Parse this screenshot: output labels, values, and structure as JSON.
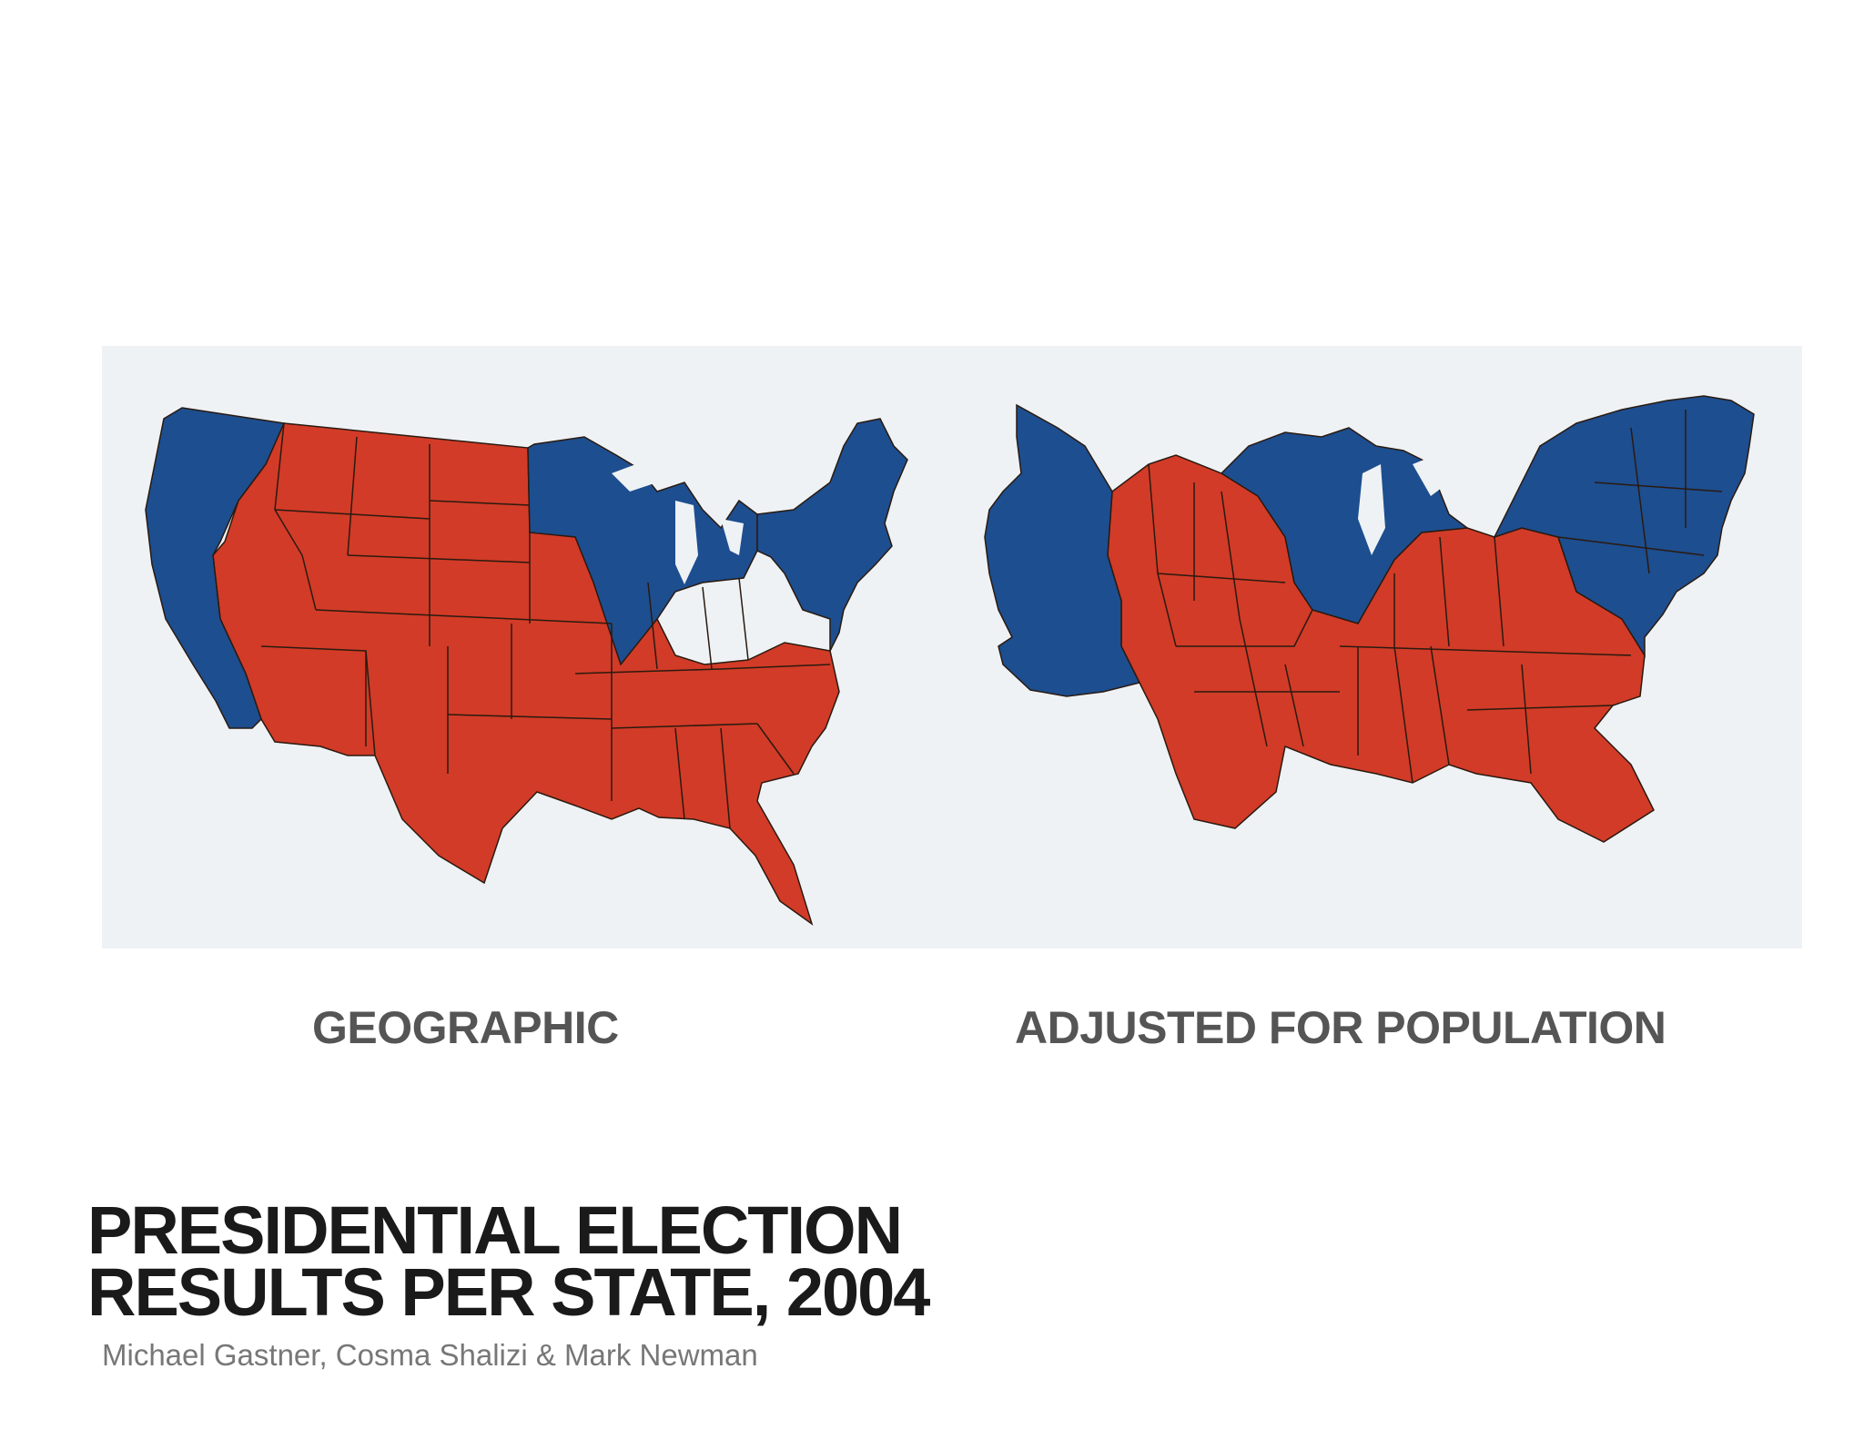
{
  "maps": {
    "geographic": {
      "label": "GEOGRAPHIC"
    },
    "population_adjusted": {
      "label": "ADJUSTED FOR POPULATION"
    },
    "colors": {
      "democratic": "#1d4e8f",
      "republican": "#d23b27",
      "border": "#2a1a10",
      "background": "#eef2f5"
    }
  },
  "title": {
    "line1": "PRESIDENTIAL ELECTION",
    "line2": "RESULTS PER STATE, 2004"
  },
  "authors": "Michael Gastner, Cosma Shalizi & Mark Newman"
}
